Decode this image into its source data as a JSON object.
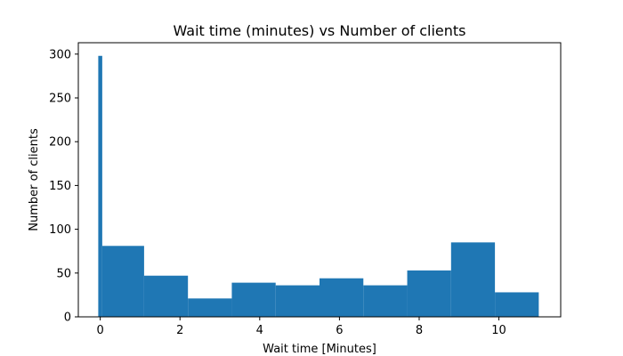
{
  "chart_data": {
    "type": "bar",
    "title": "Wait time (minutes) vs Number of clients",
    "xlabel": "Wait time [Minutes]",
    "ylabel": "Number of clients",
    "xlim": [
      -0.55,
      11.55
    ],
    "ylim": [
      0,
      313
    ],
    "xticks": [
      0,
      2,
      4,
      6,
      8,
      10
    ],
    "yticks": [
      0,
      50,
      100,
      150,
      200,
      250,
      300
    ],
    "bar_color": "#1f77b4",
    "grid": false,
    "bins": [
      {
        "x0": -0.05,
        "x1": 0.05,
        "count": 298
      },
      {
        "x0": 0.05,
        "x1": 1.1,
        "count": 81
      },
      {
        "x0": 1.1,
        "x1": 2.2,
        "count": 47
      },
      {
        "x0": 2.2,
        "x1": 3.3,
        "count": 21
      },
      {
        "x0": 3.3,
        "x1": 4.4,
        "count": 39
      },
      {
        "x0": 4.4,
        "x1": 5.5,
        "count": 36
      },
      {
        "x0": 5.5,
        "x1": 6.6,
        "count": 44
      },
      {
        "x0": 6.6,
        "x1": 7.7,
        "count": 36
      },
      {
        "x0": 7.7,
        "x1": 8.8,
        "count": 53
      },
      {
        "x0": 8.8,
        "x1": 9.9,
        "count": 85
      },
      {
        "x0": 9.9,
        "x1": 11.0,
        "count": 28
      }
    ]
  }
}
